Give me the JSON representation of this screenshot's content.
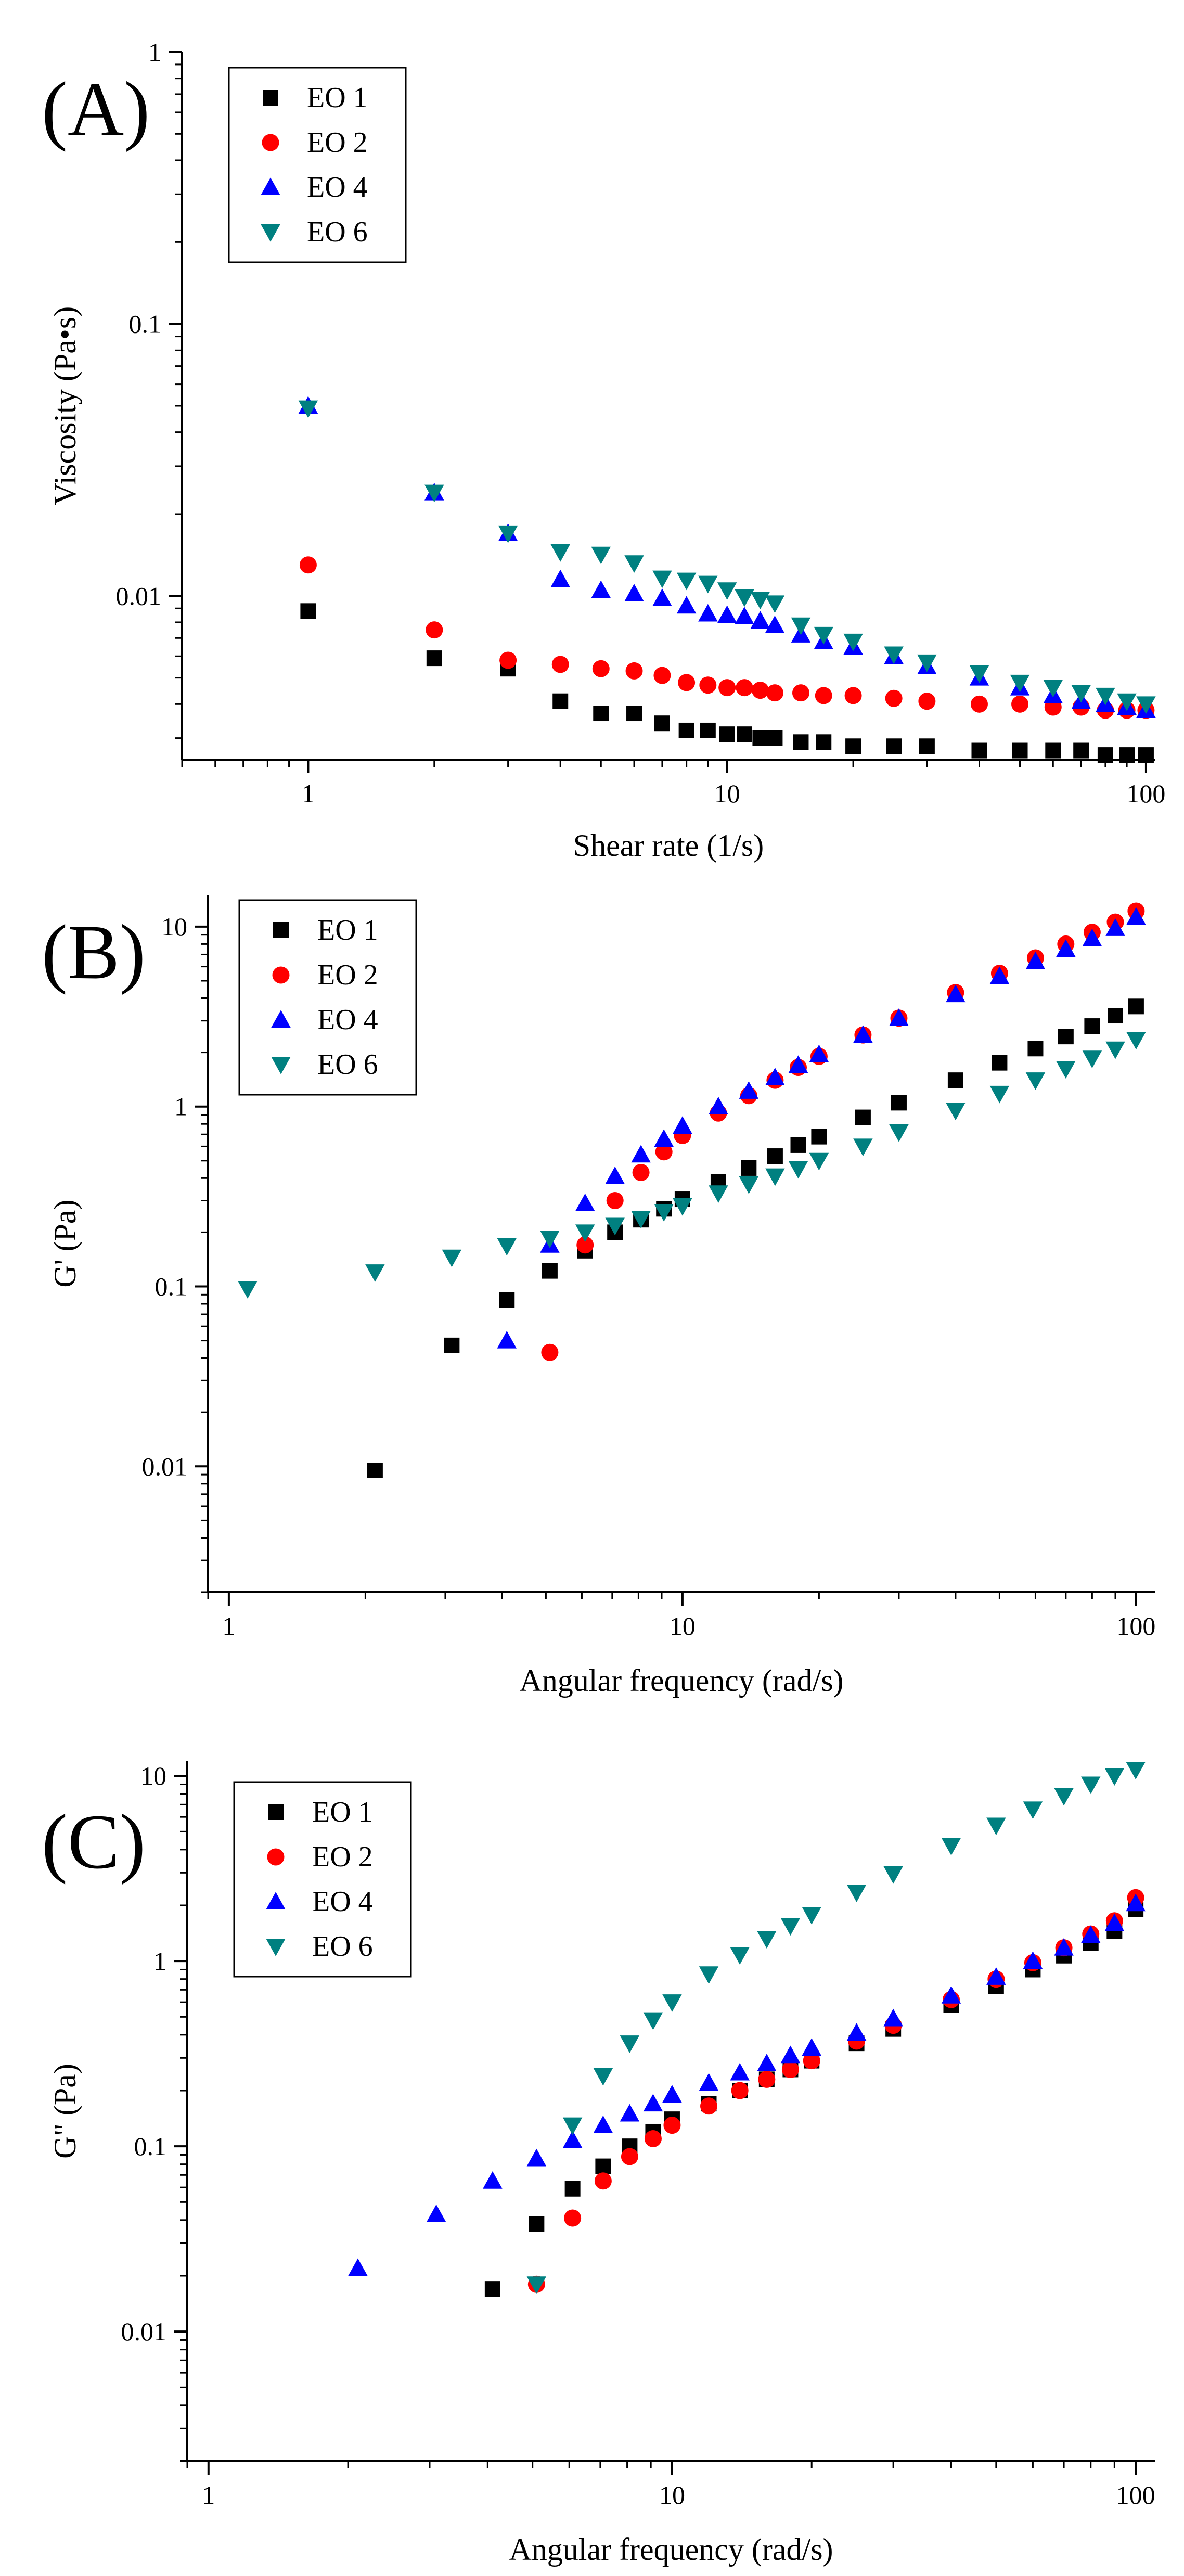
{
  "colors": {
    "EO 1": "#000000",
    "EO 2": "#ff0000",
    "EO 4": "#0000ff",
    "EO 6": "#008080"
  },
  "chart_data": [
    {
      "panel_label": "(A)",
      "type": "scatter",
      "xscale": "log",
      "yscale": "log",
      "xlabel": "Shear rate (1/s)",
      "ylabel": "Viscosity (Pa•s)",
      "xlim": [
        0.5,
        105
      ],
      "ylim": [
        0.0025,
        1
      ],
      "xticks": [
        1,
        10,
        100
      ],
      "xtick_labels": [
        "1",
        "10",
        "100"
      ],
      "yticks": [
        0.01,
        0.1,
        1
      ],
      "ytick_labels": [
        "0.01",
        "0.1",
        "1"
      ],
      "legend": {
        "position": "top-left",
        "entries": [
          "EO 1",
          "EO 2",
          "EO 4",
          "EO 6"
        ]
      },
      "series": [
        {
          "name": "EO 1",
          "marker": "square",
          "x": [
            1,
            2,
            3,
            4,
            5,
            6,
            7,
            8,
            9,
            10,
            11,
            12,
            13,
            15,
            17,
            20,
            25,
            30,
            40,
            50,
            60,
            70,
            80,
            90,
            100
          ],
          "y": [
            0.0088,
            0.0059,
            0.0054,
            0.0041,
            0.0037,
            0.0037,
            0.0034,
            0.0032,
            0.0032,
            0.0031,
            0.0031,
            0.003,
            0.003,
            0.0029,
            0.0029,
            0.0028,
            0.0028,
            0.0028,
            0.0027,
            0.0027,
            0.0027,
            0.0027,
            0.0026,
            0.0026,
            0.0026
          ]
        },
        {
          "name": "EO 2",
          "marker": "circle",
          "x": [
            1,
            2,
            3,
            4,
            5,
            6,
            7,
            8,
            9,
            10,
            11,
            12,
            13,
            15,
            17,
            20,
            25,
            30,
            40,
            50,
            60,
            70,
            80,
            90,
            100
          ],
          "y": [
            0.013,
            0.0075,
            0.0058,
            0.0056,
            0.0054,
            0.0053,
            0.0051,
            0.0048,
            0.0047,
            0.0046,
            0.0046,
            0.0045,
            0.0044,
            0.0044,
            0.0043,
            0.0043,
            0.0042,
            0.0041,
            0.004,
            0.004,
            0.0039,
            0.0039,
            0.0038,
            0.0038,
            0.0038
          ]
        },
        {
          "name": "EO 4",
          "marker": "triangle-up",
          "x": [
            1,
            2,
            3,
            4,
            5,
            6,
            7,
            8,
            9,
            10,
            11,
            12,
            13,
            15,
            17,
            20,
            25,
            30,
            40,
            50,
            60,
            70,
            80,
            90,
            100
          ],
          "y": [
            0.05,
            0.024,
            0.017,
            0.0115,
            0.0105,
            0.0102,
            0.0098,
            0.0092,
            0.0086,
            0.0085,
            0.0084,
            0.0081,
            0.0078,
            0.0072,
            0.0068,
            0.0065,
            0.006,
            0.0055,
            0.005,
            0.0046,
            0.0043,
            0.0041,
            0.004,
            0.0039,
            0.0038
          ]
        },
        {
          "name": "EO 6",
          "marker": "triangle-down",
          "x": [
            1,
            2,
            3,
            4,
            5,
            6,
            7,
            8,
            9,
            10,
            11,
            12,
            13,
            15,
            17,
            20,
            25,
            30,
            40,
            50,
            60,
            70,
            80,
            90,
            100
          ],
          "y": [
            0.049,
            0.024,
            0.017,
            0.0145,
            0.0142,
            0.0132,
            0.0116,
            0.0114,
            0.0111,
            0.0105,
            0.0099,
            0.0097,
            0.0094,
            0.0078,
            0.0072,
            0.0068,
            0.0061,
            0.0057,
            0.0052,
            0.0048,
            0.0046,
            0.0044,
            0.0043,
            0.0041,
            0.004
          ]
        }
      ]
    },
    {
      "panel_label": "(B)",
      "type": "scatter",
      "xscale": "log",
      "yscale": "log",
      "xlabel": "Angular frequency (rad/s)",
      "ylabel": "G' (Pa)",
      "xlim": [
        0.9,
        110
      ],
      "ylim": [
        0.002,
        15
      ],
      "xticks": [
        1,
        10,
        100
      ],
      "xtick_labels": [
        "1",
        "10",
        "100"
      ],
      "yticks": [
        0.01,
        0.1,
        1,
        10
      ],
      "ytick_labels": [
        "0.01",
        "0.1",
        "1",
        "10"
      ],
      "legend": {
        "position": "top-left",
        "entries": [
          "EO 1",
          "EO 2",
          "EO 4",
          "EO 6"
        ]
      },
      "series": [
        {
          "name": "EO 1",
          "marker": "square",
          "x": [
            2.1,
            3.1,
            4.1,
            5.1,
            6.1,
            7.1,
            8.1,
            9.1,
            10,
            12,
            14,
            16,
            18,
            20,
            25,
            30,
            40,
            50,
            60,
            70,
            80,
            90,
            100
          ],
          "y": [
            0.0095,
            0.047,
            0.084,
            0.122,
            0.158,
            0.2,
            0.235,
            0.27,
            0.305,
            0.38,
            0.455,
            0.53,
            0.61,
            0.68,
            0.87,
            1.05,
            1.4,
            1.75,
            2.1,
            2.45,
            2.8,
            3.2,
            3.6
          ]
        },
        {
          "name": "EO 2",
          "marker": "circle",
          "x": [
            5.1,
            6.1,
            7.1,
            8.1,
            9.1,
            10,
            12,
            14,
            16,
            18,
            20,
            25,
            30,
            40,
            50,
            60,
            70,
            80,
            90,
            100
          ],
          "y": [
            0.043,
            0.17,
            0.3,
            0.43,
            0.56,
            0.69,
            0.92,
            1.15,
            1.4,
            1.65,
            1.9,
            2.5,
            3.1,
            4.3,
            5.5,
            6.7,
            8.0,
            9.3,
            10.6,
            12.2
          ]
        },
        {
          "name": "EO 4",
          "marker": "triangle-up",
          "x": [
            4.1,
            5.1,
            6.1,
            7.1,
            8.1,
            9.1,
            10,
            12,
            14,
            16,
            18,
            20,
            25,
            30,
            40,
            50,
            60,
            70,
            80,
            90,
            100
          ],
          "y": [
            0.05,
            0.17,
            0.29,
            0.41,
            0.54,
            0.66,
            0.78,
            1.0,
            1.22,
            1.45,
            1.7,
            1.95,
            2.5,
            3.1,
            4.2,
            5.3,
            6.4,
            7.5,
            8.6,
            9.8,
            11.3
          ]
        },
        {
          "name": "EO 6",
          "marker": "triangle-down",
          "x": [
            1.1,
            2.1,
            3.1,
            4.1,
            5.1,
            6.1,
            7.1,
            8.1,
            9.1,
            10,
            12,
            14,
            16,
            18,
            20,
            25,
            30,
            40,
            50,
            60,
            70,
            80,
            90,
            100
          ],
          "y": [
            0.097,
            0.12,
            0.145,
            0.168,
            0.185,
            0.2,
            0.218,
            0.238,
            0.26,
            0.28,
            0.33,
            0.37,
            0.41,
            0.45,
            0.5,
            0.6,
            0.72,
            0.95,
            1.18,
            1.4,
            1.62,
            1.85,
            2.08,
            2.35
          ]
        }
      ]
    },
    {
      "panel_label": "(C)",
      "type": "scatter",
      "xscale": "log",
      "yscale": "log",
      "xlabel": "Angular frequency (rad/s)",
      "ylabel": "G\" (Pa)",
      "xlim": [
        0.9,
        110
      ],
      "ylim": [
        0.002,
        12
      ],
      "xticks": [
        1,
        10,
        100
      ],
      "xtick_labels": [
        "1",
        "10",
        "100"
      ],
      "yticks": [
        0.01,
        0.1,
        1,
        10
      ],
      "ytick_labels": [
        "0.01",
        "0.1",
        "1",
        "10"
      ],
      "legend": {
        "position": "top-left",
        "entries": [
          "EO 1",
          "EO 2",
          "EO 4",
          "EO 6"
        ]
      },
      "series": [
        {
          "name": "EO 1",
          "marker": "square",
          "x": [
            4.1,
            5.1,
            6.1,
            7.1,
            8.1,
            9.1,
            10,
            12,
            14,
            16,
            18,
            20,
            25,
            30,
            40,
            50,
            60,
            70,
            80,
            90,
            100
          ],
          "y": [
            0.017,
            0.038,
            0.059,
            0.078,
            0.1,
            0.12,
            0.14,
            0.17,
            0.2,
            0.23,
            0.26,
            0.29,
            0.36,
            0.43,
            0.58,
            0.73,
            0.9,
            1.07,
            1.25,
            1.45,
            1.9
          ]
        },
        {
          "name": "EO 2",
          "marker": "circle",
          "x": [
            5.1,
            6.1,
            7.1,
            8.1,
            9.1,
            10,
            12,
            14,
            16,
            18,
            20,
            25,
            30,
            40,
            50,
            60,
            70,
            80,
            90,
            100
          ],
          "y": [
            0.018,
            0.041,
            0.065,
            0.088,
            0.11,
            0.13,
            0.165,
            0.2,
            0.23,
            0.26,
            0.29,
            0.37,
            0.45,
            0.62,
            0.8,
            0.98,
            1.18,
            1.4,
            1.65,
            2.2
          ]
        },
        {
          "name": "EO 4",
          "marker": "triangle-up",
          "x": [
            2.1,
            3.1,
            4.1,
            5.1,
            6.1,
            7.1,
            8.1,
            9.1,
            10,
            12,
            14,
            16,
            18,
            20,
            25,
            30,
            40,
            50,
            60,
            70,
            80,
            90,
            100
          ],
          "y": [
            0.022,
            0.043,
            0.065,
            0.086,
            0.108,
            0.13,
            0.15,
            0.17,
            0.19,
            0.22,
            0.25,
            0.28,
            0.31,
            0.34,
            0.41,
            0.49,
            0.65,
            0.82,
            1.0,
            1.18,
            1.38,
            1.6,
            2.05
          ]
        },
        {
          "name": "EO 6",
          "marker": "triangle-down",
          "x": [
            5.1,
            6.1,
            7.1,
            8.1,
            9.1,
            10,
            12,
            14,
            16,
            18,
            20,
            25,
            30,
            40,
            50,
            60,
            70,
            80,
            90,
            100
          ],
          "y": [
            0.018,
            0.13,
            0.24,
            0.36,
            0.48,
            0.6,
            0.85,
            1.08,
            1.32,
            1.55,
            1.78,
            2.35,
            2.95,
            4.2,
            5.4,
            6.6,
            7.8,
            9.0,
            10.0,
            10.8
          ]
        }
      ]
    }
  ]
}
